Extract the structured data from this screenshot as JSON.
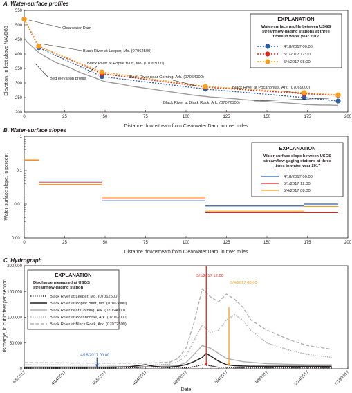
{
  "panels": {
    "a": {
      "title": "A. Water-surface profiles",
      "xlabel": "Distance downstream from Clearwater Dam, in river miles",
      "ylabel": "Elevation, in feet above NAVD88",
      "x_ticks": [
        "0",
        "25",
        "50",
        "75",
        "100",
        "125",
        "150",
        "175",
        "200"
      ],
      "y_ticks": [
        "200",
        "250",
        "300",
        "350",
        "400",
        "450",
        "500",
        "550"
      ],
      "annotations": [
        "Clearwater Dam",
        "Black River at Leeper, Mo. (07062500)",
        "Black River at Poplar Bluff, Mo. (07063000)",
        "Black River near Corning, Ark. (07064000)",
        "Black River at Pocahontas, Ark. (07069000)",
        "Black River at Black Rock, Ark. (07072500)",
        "Bed elevation profile"
      ],
      "explanation": {
        "heading": "EXPLANATION",
        "subtitle": [
          "Water-surface profile between USGS",
          "streamflow-gaging stations at three",
          "times in water year 2017"
        ],
        "items": [
          "4/18/2017 00:00",
          "5/1/2017 12:00",
          "5/4/2017 08:00"
        ]
      }
    },
    "b": {
      "title": "B. Water-surface slopes",
      "xlabel": "Distance downstream from Clearwater Dam, in river miles",
      "ylabel": "Water-surface slope, in percent",
      "x_ticks": [
        "0",
        "25",
        "50",
        "75",
        "100",
        "125",
        "150",
        "175",
        "200"
      ],
      "y_ticks": [
        "1",
        "0.1",
        "0.01",
        "0.001"
      ],
      "explanation": {
        "heading": "EXPLANATION",
        "subtitle": [
          "Water-surface slope between USGS",
          "streamflow-gaging stations at three",
          "times in water year 2017"
        ],
        "items": [
          "4/18/2017 00:00",
          "5/1/2017 12:00",
          "5/4/2017 08:00"
        ]
      }
    },
    "c": {
      "title": "C. Hydrograph",
      "xlabel": "Date",
      "ylabel": "Discharge, in cubic feet per second",
      "x_ticks": [
        "4/9/2017",
        "4/14/2017",
        "4/19/2017",
        "4/24/2017",
        "4/29/2017",
        "5/4/2017",
        "5/9/2017",
        "5/14/2017",
        "5/19/2017"
      ],
      "y_ticks": [
        "0",
        "50,000",
        "100,000",
        "150,000",
        "200,000"
      ],
      "markers": [
        "4/18/2017 00:00",
        "5/1/2017 12:00",
        "5/4/2017 08:00"
      ],
      "explanation": {
        "heading": "EXPLANATION",
        "subtitle": [
          "Discharge measured at USGS",
          "streamflow-gaging station"
        ],
        "items": [
          "Black River at Leeper, Mo. (07062500)",
          "Black River at Poplar Bluff, Mo. (07063000)",
          "Black River near Corning, Ark. (07064000)",
          "Black River at Pocahontas, Ark. (07069000)",
          "Black River at Black Rock, Ark. (07072500)"
        ]
      }
    }
  },
  "colors": {
    "t1": "#2e5fa3",
    "t2": "#e2231a",
    "t3": "#f5a01a",
    "bed": "#9a9a9a"
  },
  "chart_data": [
    {
      "type": "line",
      "title": "A. Water-surface profiles",
      "xlabel": "Distance downstream from Clearwater Dam, in river miles",
      "ylabel": "Elevation, in feet above NAVD88",
      "xlim": [
        0,
        200
      ],
      "ylim": [
        200,
        550
      ],
      "series": [
        {
          "name": "4/18/2017 00:00",
          "x": [
            0,
            9,
            48,
            112,
            173,
            194
          ],
          "y": [
            520,
            422,
            322,
            279,
            250,
            238
          ]
        },
        {
          "name": "5/1/2017 12:00",
          "x": [
            0,
            9,
            48,
            112,
            173,
            194
          ],
          "y": [
            520,
            427,
            332,
            286,
            263,
            258
          ]
        },
        {
          "name": "5/4/2017 08:00",
          "x": [
            0,
            9,
            48,
            112,
            173,
            194
          ],
          "y": [
            520,
            426,
            338,
            288,
            267,
            259
          ]
        },
        {
          "name": "Bed elevation profile",
          "x": [
            0,
            2,
            5,
            9,
            15,
            20,
            25,
            30,
            35,
            40,
            45,
            48,
            50,
            55,
            60,
            65,
            70,
            75,
            80,
            85,
            90,
            95,
            100,
            105,
            110,
            112,
            115,
            120,
            125,
            130,
            135,
            140,
            145,
            150,
            155,
            160,
            165,
            170,
            173,
            178,
            183,
            188,
            194
          ],
          "y": [
            455,
            440,
            425,
            405,
            385,
            370,
            360,
            348,
            335,
            325,
            315,
            308,
            305,
            300,
            296,
            290,
            286,
            282,
            278,
            274,
            270,
            266,
            262,
            258,
            255,
            254,
            252,
            250,
            248,
            246,
            243,
            241,
            238,
            236,
            234,
            232,
            230,
            228,
            226,
            225,
            224,
            224,
            223
          ]
        }
      ]
    },
    {
      "type": "line",
      "title": "B. Water-surface slopes",
      "xlabel": "Distance downstream from Clearwater Dam, in river miles",
      "ylabel": "Water-surface slope, in percent",
      "xlim": [
        0,
        200
      ],
      "ylim": [
        0.001,
        1
      ],
      "yscale": "log",
      "segments": [
        {
          "name": "4/18/2017 00:00",
          "ranges": [
            [
              0,
              9,
              0.2
            ],
            [
              9,
              48,
              0.048
            ],
            [
              48,
              112,
              0.0125
            ],
            [
              112,
              173,
              0.0088
            ],
            [
              173,
              194,
              0.01
            ]
          ]
        },
        {
          "name": "5/1/2017 12:00",
          "ranges": [
            [
              0,
              9,
              0.2
            ],
            [
              9,
              48,
              0.043
            ],
            [
              48,
              112,
              0.0143
            ],
            [
              112,
              173,
              0.0056
            ],
            [
              173,
              194,
              0.0056
            ]
          ]
        },
        {
          "name": "5/4/2017 08:00",
          "ranges": [
            [
              0,
              9,
              0.2
            ],
            [
              9,
              48,
              0.038
            ],
            [
              48,
              112,
              0.016
            ],
            [
              112,
              173,
              0.0062
            ],
            [
              173,
              194,
              0.0085
            ]
          ]
        }
      ]
    },
    {
      "type": "line",
      "title": "C. Hydrograph",
      "xlabel": "Date",
      "ylabel": "Discharge, in cubic feet per second",
      "x_start": "4/9/2017",
      "x_units": "days",
      "xlim": [
        0,
        40
      ],
      "ylim": [
        0,
        200000
      ],
      "markers": [
        {
          "label": "4/18/2017 00:00",
          "x": 9,
          "y_from": 22000,
          "y_to": 2000
        },
        {
          "label": "5/1/2017 12:00",
          "x": 22.5,
          "y_from": 200000,
          "y_to": 5000
        },
        {
          "label": "5/4/2017 08:00",
          "x": 25.3,
          "y_from": 120000,
          "y_to": 5000
        }
      ],
      "series": [
        {
          "name": "Black River at Leeper, Mo. (07062500)",
          "x": [
            0,
            5,
            10,
            14,
            15,
            17,
            18,
            20,
            21,
            22,
            23,
            24,
            26,
            30,
            35,
            38
          ],
          "y": [
            1500,
            1500,
            1500,
            2500,
            3500,
            3000,
            2000,
            2000,
            4000,
            8000,
            6000,
            3000,
            2000,
            2000,
            2000,
            2000
          ]
        },
        {
          "name": "Black River at Poplar Bluff, Mo. (07063000)",
          "x": [
            0,
            5,
            10,
            13,
            15,
            16,
            17,
            18,
            19,
            20,
            21,
            22,
            22.5,
            23,
            24,
            25,
            26,
            28,
            32,
            38
          ],
          "y": [
            3000,
            3000,
            3000,
            4000,
            8000,
            5000,
            3500,
            3500,
            5000,
            8000,
            14000,
            22000,
            30000,
            25000,
            15000,
            8000,
            6000,
            5000,
            5000,
            5000
          ]
        },
        {
          "name": "Black River near Corning, Ark. (07064000)",
          "x": [
            0,
            5,
            10,
            15,
            17,
            19,
            20,
            21,
            22,
            23,
            24,
            25,
            27,
            30,
            35,
            38
          ],
          "y": [
            4000,
            4000,
            4000,
            4500,
            5000,
            6000,
            12000,
            28000,
            45000,
            40000,
            30000,
            20000,
            14000,
            10000,
            8000,
            8000
          ]
        },
        {
          "name": "Black River at Pocahontas, Ark. (07069000)",
          "x": [
            0,
            5,
            10,
            14,
            16,
            18,
            19,
            20,
            21,
            22,
            23,
            24,
            25,
            26,
            27,
            28,
            30,
            33,
            35,
            38
          ],
          "y": [
            8000,
            7500,
            7000,
            7000,
            7500,
            9000,
            14000,
            25000,
            55000,
            85000,
            70000,
            75000,
            95000,
            105000,
            95000,
            75000,
            50000,
            35000,
            28000,
            22000
          ]
        },
        {
          "name": "Black River at Black Rock, Ark. (07072500)",
          "x": [
            0,
            5,
            10,
            14,
            16,
            18,
            19,
            20,
            21,
            22,
            23,
            24,
            25,
            26,
            27,
            28,
            30,
            33,
            35,
            38
          ],
          "y": [
            12000,
            11500,
            11000,
            11000,
            11500,
            13000,
            20000,
            40000,
            90000,
            155000,
            140000,
            130000,
            145000,
            135000,
            120000,
            95000,
            75000,
            55000,
            45000,
            38000
          ]
        }
      ]
    }
  ]
}
